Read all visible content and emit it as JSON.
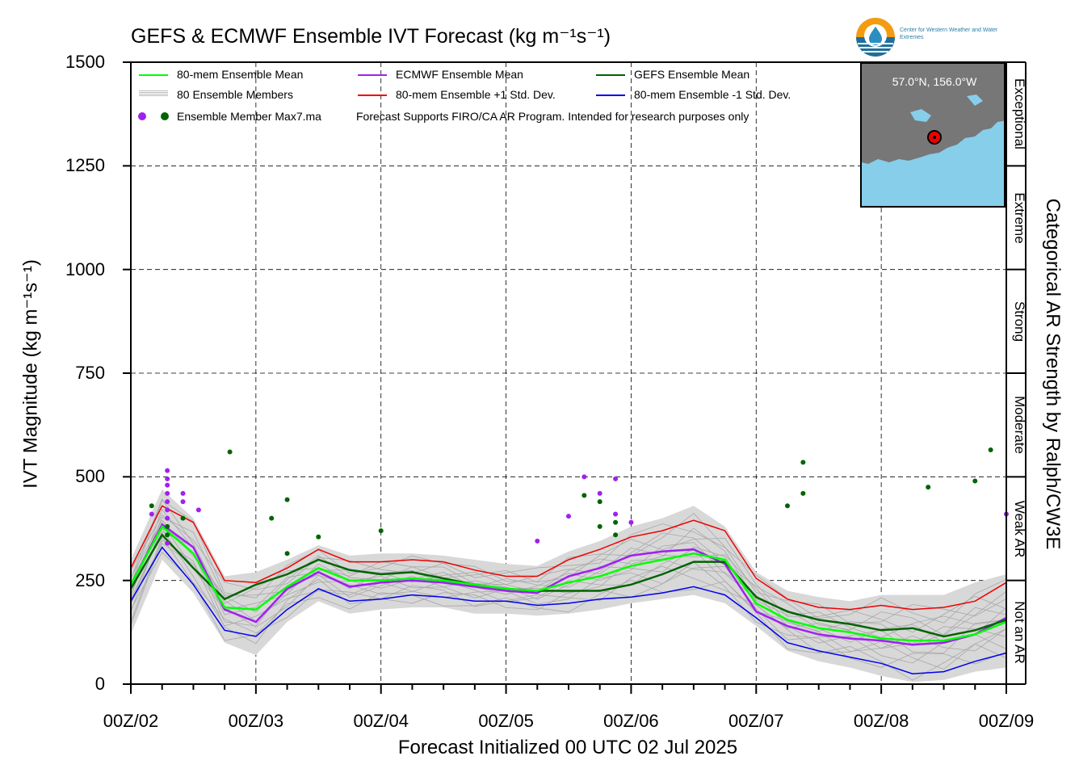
{
  "title": "GEFS & ECMWF Ensemble IVT Forecast (kg m⁻¹s⁻¹)",
  "logo_text": "Center for Western Weather and Water Extremes",
  "inset": {
    "coords": "57.0°N, 156.0°W",
    "land_color": "#777777",
    "water_color": "#87CEEB"
  },
  "legend": [
    {
      "label": "80-mem Ensemble Mean",
      "color": "#00ff00"
    },
    {
      "label": "ECMWF Ensemble Mean",
      "color": "#a020f0"
    },
    {
      "label": "GEFS Ensemble Mean",
      "color": "#006400"
    },
    {
      "label": "80 Ensemble Members",
      "color": "#bbbbbb"
    },
    {
      "label": "80-mem Ensemble +1 Std. Dev.",
      "color": "#ee0000"
    },
    {
      "label": "80-mem Ensemble -1 Std. Dev.",
      "color": "#0000ee"
    },
    {
      "label": "Ensemble Member Max7.ma",
      "color": "#a020f0"
    }
  ],
  "note": "Forecast Supports FIRO/CA AR Program. Intended for research purposes only",
  "chart_data": {
    "type": "line",
    "title": "GEFS & ECMWF Ensemble IVT Forecast (kg m⁻¹s⁻¹)",
    "xlabel": "Forecast Initialized 00 UTC 02 Jul 2025",
    "ylabel": "IVT Magnitude (kg m⁻¹s⁻¹)",
    "right_label": "Categorical AR Strength by Ralph/CW3E",
    "ylim": [
      0,
      1500
    ],
    "xlim_hours": [
      0,
      168
    ],
    "yticks": [
      "0",
      "250",
      "500",
      "750",
      "1000",
      "1250",
      "1500"
    ],
    "yticks_values": [
      0,
      250,
      500,
      750,
      1000,
      1250,
      1500
    ],
    "xticks": [
      "00Z/02",
      "00Z/03",
      "00Z/04",
      "00Z/05",
      "00Z/06",
      "00Z/07",
      "00Z/08",
      "00Z/09"
    ],
    "categories_right": [
      {
        "label": "Not an AR",
        "range": [
          0,
          250
        ]
      },
      {
        "label": "Weak AR",
        "range": [
          250,
          500
        ]
      },
      {
        "label": "Moderate",
        "range": [
          500,
          750
        ]
      },
      {
        "label": "Strong",
        "range": [
          750,
          1000
        ]
      },
      {
        "label": "Extreme",
        "range": [
          1000,
          1250
        ]
      },
      {
        "label": "Exceptional",
        "range": [
          1250,
          1500
        ]
      }
    ],
    "x_hours": [
      0,
      6,
      12,
      18,
      24,
      30,
      36,
      42,
      48,
      54,
      60,
      66,
      72,
      78,
      84,
      90,
      96,
      102,
      108,
      114,
      120,
      126,
      132,
      138,
      144,
      150,
      156,
      162,
      168
    ],
    "series": [
      {
        "name": "80-mem Ensemble +1 Std. Dev.",
        "color": "#ee0000",
        "values": [
          280,
          430,
          390,
          250,
          245,
          280,
          325,
          295,
          295,
          300,
          295,
          275,
          260,
          260,
          300,
          325,
          355,
          370,
          395,
          370,
          255,
          205,
          185,
          180,
          190,
          180,
          185,
          200,
          245
        ]
      },
      {
        "name": "80-mem Ensemble -1 Std. Dev.",
        "color": "#0000ee",
        "values": [
          200,
          330,
          240,
          130,
          115,
          180,
          230,
          200,
          205,
          215,
          210,
          200,
          200,
          190,
          195,
          205,
          210,
          220,
          235,
          215,
          160,
          100,
          80,
          65,
          50,
          25,
          30,
          55,
          75
        ]
      },
      {
        "name": "ECMWF Ensemble Mean",
        "color": "#a020f0",
        "values": [
          240,
          385,
          330,
          180,
          150,
          230,
          270,
          235,
          245,
          250,
          245,
          235,
          225,
          220,
          260,
          280,
          310,
          320,
          325,
          290,
          175,
          140,
          120,
          110,
          105,
          95,
          100,
          120,
          160
        ]
      },
      {
        "name": "GEFS Ensemble Mean",
        "color": "#006400",
        "values": [
          230,
          360,
          280,
          205,
          240,
          265,
          300,
          275,
          265,
          270,
          255,
          240,
          230,
          225,
          225,
          225,
          240,
          265,
          295,
          295,
          210,
          175,
          155,
          145,
          130,
          135,
          115,
          130,
          155
        ]
      },
      {
        "name": "80-mem Ensemble Mean",
        "color": "#00ff00",
        "values": [
          240,
          380,
          315,
          185,
          180,
          235,
          280,
          250,
          250,
          255,
          250,
          240,
          230,
          225,
          245,
          260,
          285,
          300,
          315,
          300,
          195,
          155,
          135,
          125,
          110,
          105,
          105,
          120,
          150
        ]
      }
    ],
    "member_envelope": {
      "upper": [
        300,
        470,
        400,
        260,
        270,
        300,
        335,
        310,
        315,
        315,
        310,
        300,
        290,
        285,
        320,
        345,
        380,
        400,
        430,
        380,
        270,
        225,
        210,
        200,
        215,
        215,
        215,
        245,
        265
      ],
      "lower": [
        120,
        300,
        220,
        100,
        70,
        150,
        200,
        170,
        180,
        185,
        185,
        170,
        170,
        165,
        170,
        180,
        195,
        205,
        215,
        195,
        140,
        80,
        55,
        40,
        20,
        5,
        10,
        30,
        40
      ]
    },
    "max_points": [
      {
        "x": 4,
        "y": 430,
        "color": "#006400"
      },
      {
        "x": 4,
        "y": 410,
        "color": "#a020f0"
      },
      {
        "x": 7,
        "y": 515,
        "color": "#a020f0"
      },
      {
        "x": 7,
        "y": 495,
        "color": "#a020f0"
      },
      {
        "x": 7,
        "y": 480,
        "color": "#a020f0"
      },
      {
        "x": 7,
        "y": 460,
        "color": "#a020f0"
      },
      {
        "x": 7,
        "y": 440,
        "color": "#a020f0"
      },
      {
        "x": 7,
        "y": 420,
        "color": "#a020f0"
      },
      {
        "x": 7,
        "y": 400,
        "color": "#a020f0"
      },
      {
        "x": 7,
        "y": 380,
        "color": "#006400"
      },
      {
        "x": 7,
        "y": 360,
        "color": "#006400"
      },
      {
        "x": 7,
        "y": 340,
        "color": "#a020f0"
      },
      {
        "x": 10,
        "y": 460,
        "color": "#a020f0"
      },
      {
        "x": 10,
        "y": 440,
        "color": "#a020f0"
      },
      {
        "x": 10,
        "y": 400,
        "color": "#006400"
      },
      {
        "x": 13,
        "y": 420,
        "color": "#a020f0"
      },
      {
        "x": 19,
        "y": 560,
        "color": "#006400"
      },
      {
        "x": 27,
        "y": 400,
        "color": "#006400"
      },
      {
        "x": 30,
        "y": 445,
        "color": "#006400"
      },
      {
        "x": 30,
        "y": 315,
        "color": "#006400"
      },
      {
        "x": 36,
        "y": 355,
        "color": "#006400"
      },
      {
        "x": 48,
        "y": 370,
        "color": "#006400"
      },
      {
        "x": 78,
        "y": 345,
        "color": "#a020f0"
      },
      {
        "x": 84,
        "y": 405,
        "color": "#a020f0"
      },
      {
        "x": 87,
        "y": 500,
        "color": "#a020f0"
      },
      {
        "x": 87,
        "y": 455,
        "color": "#006400"
      },
      {
        "x": 90,
        "y": 460,
        "color": "#a020f0"
      },
      {
        "x": 90,
        "y": 440,
        "color": "#006400"
      },
      {
        "x": 90,
        "y": 380,
        "color": "#006400"
      },
      {
        "x": 93,
        "y": 495,
        "color": "#a020f0"
      },
      {
        "x": 93,
        "y": 410,
        "color": "#a020f0"
      },
      {
        "x": 93,
        "y": 390,
        "color": "#006400"
      },
      {
        "x": 93,
        "y": 360,
        "color": "#006400"
      },
      {
        "x": 96,
        "y": 390,
        "color": "#a020f0"
      },
      {
        "x": 126,
        "y": 430,
        "color": "#006400"
      },
      {
        "x": 129,
        "y": 535,
        "color": "#006400"
      },
      {
        "x": 129,
        "y": 460,
        "color": "#006400"
      },
      {
        "x": 153,
        "y": 475,
        "color": "#006400"
      },
      {
        "x": 162,
        "y": 490,
        "color": "#006400"
      },
      {
        "x": 165,
        "y": 565,
        "color": "#006400"
      },
      {
        "x": 168,
        "y": 410,
        "color": "#a020f0"
      }
    ]
  }
}
